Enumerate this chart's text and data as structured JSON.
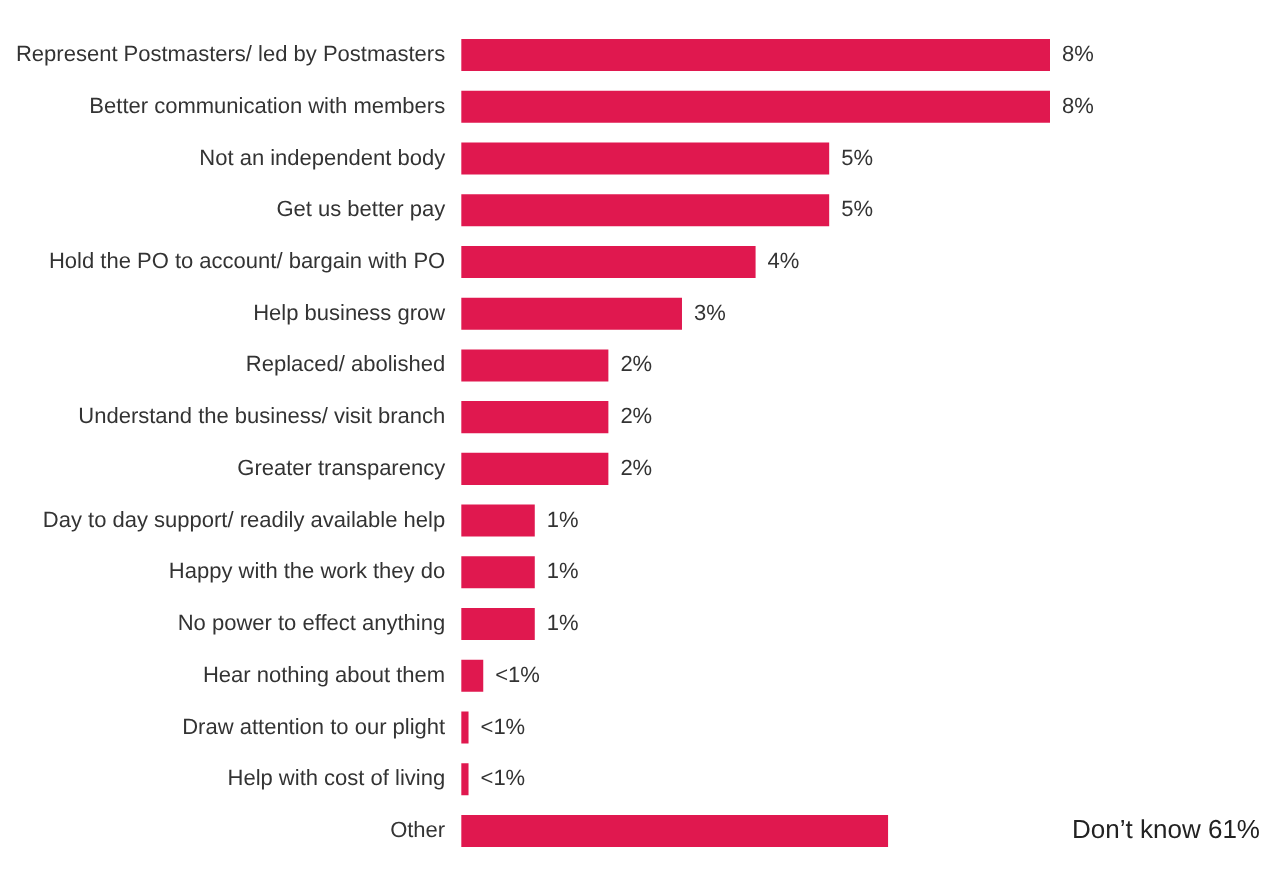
{
  "chart_data": {
    "type": "bar",
    "orientation": "horizontal",
    "categories": [
      "Represent Postmasters/ led by Postmasters",
      "Better communication with members",
      "Not an independent body",
      "Get us better pay",
      "Hold the PO to account/ bargain with PO",
      "Help business grow",
      "Replaced/ abolished",
      "Understand the business/ visit branch",
      "Greater transparency",
      "Day to day support/ readily available help",
      "Happy with the work they do",
      "No power to effect anything",
      "Hear nothing about them",
      "Draw attention to our plight",
      "Help with cost of living",
      "Other"
    ],
    "values": [
      8,
      8,
      5,
      5,
      4,
      3,
      2,
      2,
      2,
      1,
      1,
      1,
      0.3,
      0.1,
      0.1,
      5.8
    ],
    "value_labels": [
      "8%",
      "8%",
      "5%",
      "5%",
      "4%",
      "3%",
      "2%",
      "2%",
      "2%",
      "1%",
      "1%",
      "1%",
      "<1%",
      "<1%",
      "<1%",
      null
    ],
    "color": "#e0184f",
    "tick_labels": "y",
    "grid": false,
    "legend": false,
    "annotations": [
      "Don’t know 61%"
    ]
  }
}
